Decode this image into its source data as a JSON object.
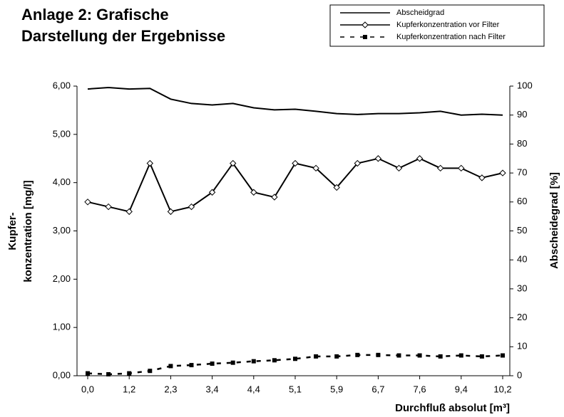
{
  "chart_data": {
    "type": "line",
    "title": [
      "Anlage 2: Grafische",
      "Darstellung der Ergebnisse"
    ],
    "xlabel": "Durchfluß absolut [m³]",
    "ylabel": [
      "Kupfer-",
      "konzentration [mg/l]"
    ],
    "y2label": "Abscheidegrad [%]",
    "categories": [
      "0,0",
      null,
      "1,2",
      null,
      "2,3",
      null,
      "3,4",
      null,
      "4,4",
      null,
      "5,1",
      null,
      "5,9",
      null,
      "6,7",
      null,
      "7,6",
      null,
      "9,4",
      null,
      "10,2"
    ],
    "ylim": [
      0,
      6
    ],
    "yticks": [
      {
        "value": 0,
        "label": "0,00"
      },
      {
        "value": 1,
        "label": "1,00"
      },
      {
        "value": 2,
        "label": "2,00"
      },
      {
        "value": 3,
        "label": "3,00"
      },
      {
        "value": 4,
        "label": "4,00"
      },
      {
        "value": 5,
        "label": "5,00"
      },
      {
        "value": 6,
        "label": "6,00"
      }
    ],
    "y2lim": [
      0,
      100
    ],
    "y2ticks": [
      0,
      10,
      20,
      30,
      40,
      50,
      60,
      70,
      80,
      90,
      100
    ],
    "series": [
      {
        "name": "Abscheidgrad",
        "color": "#000000",
        "axis": "y2",
        "marker": "none",
        "dash": false,
        "values": [
          99,
          99.5,
          99,
          99.2,
          95.5,
          94,
          93.5,
          94,
          92.5,
          91.8,
          92,
          91.3,
          90.5,
          90.2,
          90.5,
          90.5,
          90.8,
          91.3,
          90,
          90.3,
          90
        ]
      },
      {
        "name": "Kupferkonzentration vor Filter",
        "color": "#000000",
        "marker": "diamond",
        "dash": false,
        "values": [
          3.6,
          3.5,
          3.4,
          4.4,
          3.4,
          3.5,
          3.8,
          4.4,
          3.8,
          3.7,
          4.4,
          4.3,
          3.9,
          4.4,
          4.5,
          4.3,
          4.5,
          4.3,
          4.3,
          4.1,
          4.2
        ]
      },
      {
        "name": "Kupferkonzentration nach Filter",
        "color": "#000000",
        "marker": "square",
        "dash": true,
        "values": [
          0.05,
          0.03,
          0.05,
          0.1,
          0.2,
          0.22,
          0.25,
          0.27,
          0.3,
          0.32,
          0.35,
          0.4,
          0.4,
          0.43,
          0.43,
          0.42,
          0.42,
          0.4,
          0.42,
          0.4,
          0.42
        ]
      }
    ]
  }
}
